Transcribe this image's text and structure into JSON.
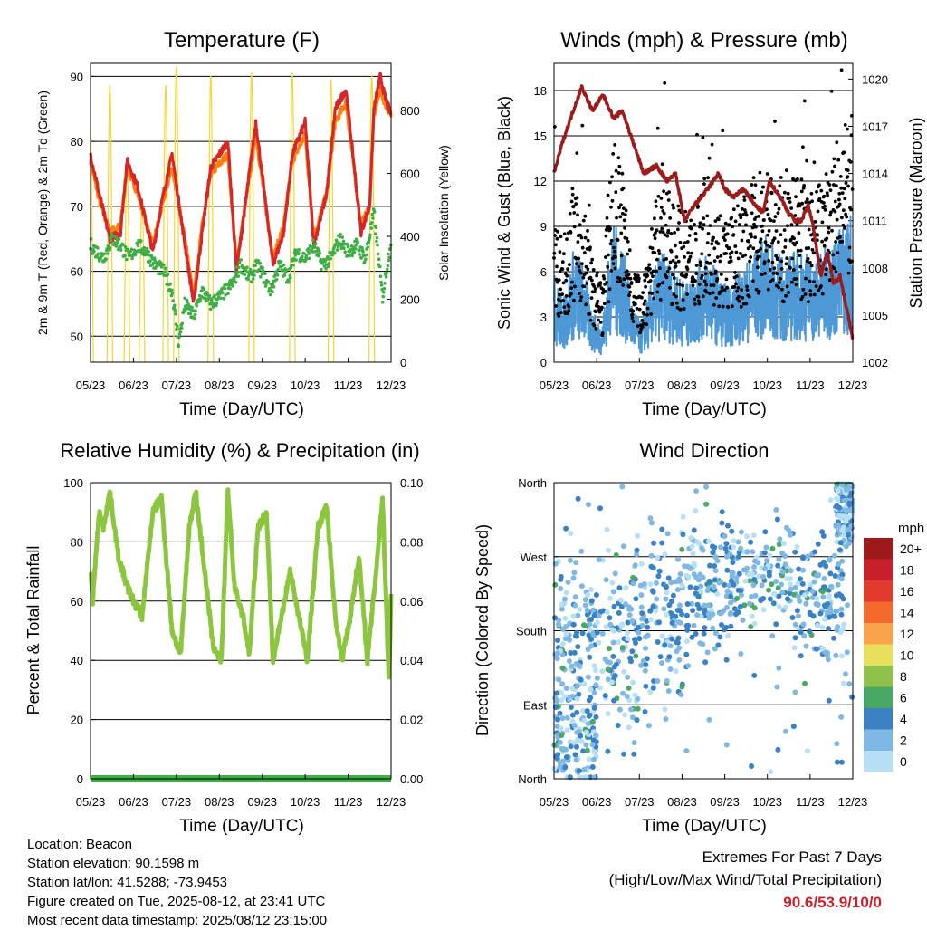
{
  "chart_data": [
    {
      "id": "temperature",
      "type": "line",
      "title": "Temperature (F)",
      "xlabel": "Time (Day/UTC)",
      "ylabel": "2m & 9m T (Red, Orange) & 2m Td (Green)",
      "ylabel_right": "Solar Insolation (Yellow)",
      "x_ticks": [
        "05/23",
        "06/23",
        "07/23",
        "08/23",
        "09/23",
        "10/23",
        "11/23",
        "12/23"
      ],
      "xlim": [
        0,
        7
      ],
      "ylim": [
        46,
        92
      ],
      "yticks": [
        50,
        60,
        70,
        80,
        90
      ],
      "ylim_right": [
        0,
        950
      ],
      "yticks_right": [
        0,
        200,
        400,
        600,
        800
      ],
      "grid": true,
      "series": [
        {
          "key": "t2m",
          "color": "#d62728",
          "axis": "left",
          "x": [
            0,
            0.2,
            0.45,
            0.7,
            0.85,
            1.1,
            1.45,
            1.7,
            1.9,
            2.2,
            2.4,
            2.6,
            2.8,
            3.2,
            3.4,
            3.6,
            3.85,
            4.25,
            4.5,
            4.7,
            5.0,
            5.2,
            5.5,
            5.7,
            5.95,
            6.3,
            6.5,
            6.6,
            6.75,
            6.85,
            7.0
          ],
          "values": [
            78,
            72,
            65,
            66,
            77,
            73,
            63,
            72,
            78,
            64,
            55,
            66,
            76,
            80,
            60,
            70,
            83,
            61,
            66,
            78,
            83,
            64,
            72,
            85,
            88,
            66,
            70,
            85,
            90,
            87,
            84
          ]
        },
        {
          "key": "t9m",
          "color": "#ff7f0e",
          "axis": "left",
          "x": [
            0,
            0.2,
            0.45,
            0.7,
            0.85,
            1.1,
            1.45,
            1.7,
            1.9,
            2.2,
            2.4,
            2.6,
            2.8,
            3.2,
            3.4,
            3.6,
            3.85,
            4.25,
            4.5,
            4.7,
            5.0,
            5.2,
            5.5,
            5.7,
            5.95,
            6.3,
            6.5,
            6.6,
            6.75,
            6.85,
            7.0
          ],
          "values": [
            77,
            71,
            66,
            67,
            76,
            72,
            64,
            71,
            76,
            65,
            56,
            67,
            75,
            78,
            61,
            70,
            81,
            62,
            67,
            77,
            81,
            65,
            72,
            83,
            86,
            67,
            70,
            84,
            88,
            86,
            84
          ]
        },
        {
          "key": "td2m",
          "color": "#3fae45",
          "axis": "left",
          "dots": true,
          "x": [
            0,
            0.3,
            0.5,
            0.7,
            0.9,
            1.1,
            1.3,
            1.5,
            1.7,
            1.9,
            2.05,
            2.2,
            2.4,
            2.6,
            2.8,
            3.0,
            3.3,
            3.5,
            3.7,
            3.9,
            4.2,
            4.4,
            4.6,
            4.8,
            5.0,
            5.2,
            5.4,
            5.6,
            5.8,
            6.0,
            6.2,
            6.4,
            6.6,
            6.8,
            7.0
          ],
          "values": [
            64,
            62,
            65,
            64,
            62,
            64,
            63,
            61,
            60,
            57,
            49,
            55,
            53,
            57,
            55,
            56,
            58,
            61,
            59,
            61,
            57,
            61,
            59,
            63,
            62,
            64,
            61,
            62,
            65,
            63,
            64,
            62,
            69,
            56,
            65
          ]
        },
        {
          "key": "solar",
          "color": "#f5d630",
          "axis": "right",
          "peaks": [
            {
              "x": 0.0,
              "v": 720
            },
            {
              "x": 0.45,
              "v": 880
            },
            {
              "x": 0.85,
              "v": 650
            },
            {
              "x": 1.2,
              "v": 520
            },
            {
              "x": 1.75,
              "v": 880
            },
            {
              "x": 2.0,
              "v": 940
            },
            {
              "x": 2.8,
              "v": 910
            },
            {
              "x": 3.75,
              "v": 920
            },
            {
              "x": 4.7,
              "v": 920
            },
            {
              "x": 5.6,
              "v": 900
            },
            {
              "x": 6.55,
              "v": 910
            }
          ]
        }
      ]
    },
    {
      "id": "winds",
      "type": "scatter",
      "title": "Winds (mph) & Pressure (mb)",
      "xlabel": "Time (Day/UTC)",
      "ylabel": "Sonic Wind & Gust (Blue, Black)",
      "ylabel_right": "Station Pressure (Maroon)",
      "x_ticks": [
        "05/23",
        "06/23",
        "07/23",
        "08/23",
        "09/23",
        "10/23",
        "11/23",
        "12/23"
      ],
      "xlim": [
        0,
        7
      ],
      "ylim": [
        0,
        19.8
      ],
      "yticks": [
        0,
        3,
        6,
        9,
        12,
        15,
        18
      ],
      "ylim_right": [
        1002,
        1021
      ],
      "yticks_right": [
        1002,
        1005,
        1008,
        1011,
        1014,
        1017,
        1020
      ],
      "grid": true,
      "series": [
        {
          "key": "pressure",
          "color": "#9b1c1c",
          "axis": "right",
          "x": [
            0,
            0.2,
            0.45,
            0.65,
            0.9,
            1.15,
            1.4,
            1.6,
            1.85,
            2.1,
            2.4,
            2.65,
            2.85,
            3.05,
            3.3,
            3.6,
            3.85,
            4.0,
            4.2,
            4.45,
            4.7,
            4.9,
            5.05,
            5.3,
            5.5,
            5.65,
            5.8,
            5.95,
            6.05,
            6.25,
            6.4,
            6.55,
            6.7,
            6.85,
            7.0
          ],
          "values": [
            1014,
            1016,
            1018,
            1019.5,
            1018,
            1019,
            1017.5,
            1018,
            1016,
            1014,
            1014.5,
            1013.5,
            1014,
            1011,
            1012,
            1013,
            1014,
            1013,
            1012.5,
            1013,
            1012,
            1011.5,
            1013.5,
            1012.5,
            1011.5,
            1011,
            1011,
            1012,
            1011,
            1007.5,
            1009,
            1007,
            1007.5,
            1005.5,
            1003.5
          ]
        },
        {
          "key": "gust",
          "color": "#000000",
          "axis": "left",
          "dots": true,
          "center": [
            6.5,
            5.5,
            8,
            7.5,
            4.5,
            3.5,
            10,
            9,
            5,
            3.5,
            6,
            8,
            7.5,
            7,
            6.5,
            7.5,
            8.5,
            7,
            6.5,
            7,
            7.5,
            8.5,
            9,
            8,
            7.5,
            8.5,
            8,
            7.5,
            8.5,
            9.5,
            10.5,
            11
          ]
        },
        {
          "key": "wind",
          "color": "#4f98d6",
          "axis": "left",
          "center": [
            3.5,
            2.5,
            4.5,
            4,
            2,
            1.5,
            5.5,
            5,
            2.5,
            1.5,
            3,
            4.5,
            4,
            3.5,
            3,
            4,
            4.5,
            3.5,
            3,
            3.5,
            4,
            4.5,
            5,
            4.5,
            4,
            4.5,
            4.5,
            4,
            4.5,
            5,
            5.5,
            6
          ]
        }
      ]
    },
    {
      "id": "humidity",
      "type": "line",
      "title": "Relative Humidity (%) & Precipitation (in)",
      "xlabel": "Time (Day/UTC)",
      "ylabel": "Percent & Total Rainfall",
      "x_ticks": [
        "05/23",
        "06/23",
        "07/23",
        "08/23",
        "09/23",
        "10/23",
        "11/23",
        "12/23"
      ],
      "xlim": [
        0,
        7
      ],
      "ylim": [
        0,
        100
      ],
      "yticks": [
        0,
        20,
        40,
        60,
        80,
        100
      ],
      "ylim_right": [
        0,
        0.1
      ],
      "yticks_right": [
        "0.00",
        "0.02",
        "0.04",
        "0.06",
        "0.08",
        "0.10"
      ],
      "grid": true,
      "series": [
        {
          "key": "rh",
          "color": "#8cc63f",
          "axis": "left",
          "x": [
            0,
            0.05,
            0.2,
            0.3,
            0.45,
            0.65,
            0.85,
            1.0,
            1.2,
            1.45,
            1.65,
            1.9,
            2.1,
            2.3,
            2.45,
            2.7,
            2.85,
            3.05,
            3.2,
            3.35,
            3.55,
            3.7,
            3.9,
            4.1,
            4.25,
            4.45,
            4.65,
            4.85,
            5.05,
            5.3,
            5.5,
            5.7,
            5.85,
            6.05,
            6.25,
            6.45,
            6.65,
            6.8,
            6.95,
            7.0
          ],
          "values": [
            70,
            60,
            90,
            85,
            97,
            75,
            65,
            60,
            55,
            90,
            95,
            50,
            42,
            85,
            97,
            65,
            45,
            40,
            98,
            65,
            55,
            42,
            85,
            90,
            40,
            55,
            70,
            55,
            40,
            85,
            92,
            55,
            40,
            55,
            75,
            40,
            70,
            95,
            33,
            62
          ]
        },
        {
          "key": "precip",
          "color": "#3fae45",
          "axis": "right",
          "x": [
            0,
            7
          ],
          "values": [
            0,
            0
          ]
        }
      ]
    },
    {
      "id": "direction",
      "type": "scatter",
      "title": "Wind Direction",
      "xlabel": "Time (Day/UTC)",
      "ylabel": "Direction (Colored By Speed)",
      "x_ticks": [
        "05/23",
        "06/23",
        "07/23",
        "08/23",
        "09/23",
        "10/23",
        "11/23",
        "12/23"
      ],
      "xlim": [
        0,
        7
      ],
      "ylim": [
        0,
        360
      ],
      "y_ticks": [
        "North",
        "East",
        "South",
        "West",
        "North"
      ],
      "grid": true,
      "legend": {
        "title": "mph",
        "placement": "right",
        "labels": [
          "20+",
          "18",
          "16",
          "14",
          "12",
          "10",
          "8",
          "6",
          "4",
          "2",
          "0"
        ],
        "colors": [
          "#9e1a1a",
          "#c8202a",
          "#e03b2c",
          "#f26a2e",
          "#f9a44a",
          "#e8e05a",
          "#8fc24a",
          "#4aa865",
          "#3a82c4",
          "#7fb8e3",
          "#b7e0f4"
        ]
      }
    }
  ],
  "info": {
    "location": "Location: Beacon",
    "elevation": "Station elevation: 90.1598 m",
    "latlon": "Station lat/lon: 41.5288; -73.9453",
    "created": "Figure created on Tue, 2025-08-12, at 23:41 UTC",
    "recent": "Most recent data timestamp: 2025/08/12 23:15:00"
  },
  "extremes": {
    "title": "Extremes For Past 7 Days",
    "subtitle": "(High/Low/Max Wind/Total Precipitation)",
    "values": "90.6/53.9/10/0"
  }
}
